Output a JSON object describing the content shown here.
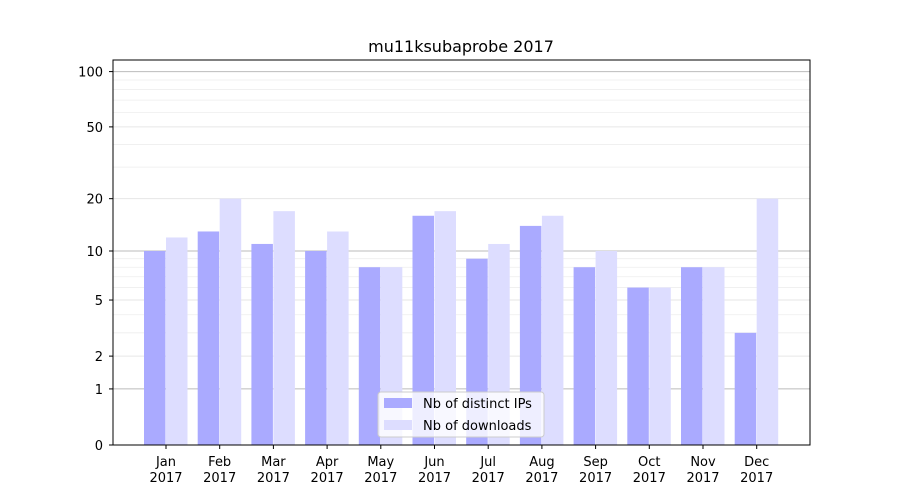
{
  "chart_data": {
    "type": "bar",
    "title": "mu11ksubaprobe 2017",
    "xlabel": "",
    "ylabel": "",
    "yscale": "symlog",
    "ylim": [
      0,
      120
    ],
    "yticks": [
      0,
      1,
      2,
      5,
      10,
      20,
      50,
      100
    ],
    "ytick_labels": [
      "0",
      "1",
      "2",
      "5",
      "10",
      "20",
      "50",
      "100"
    ],
    "grid": true,
    "legend_position": "bottom-center",
    "categories": [
      "Jan\n2017",
      "Feb\n2017",
      "Mar\n2017",
      "Apr\n2017",
      "May\n2017",
      "Jun\n2017",
      "Jul\n2017",
      "Aug\n2017",
      "Sep\n2017",
      "Oct\n2017",
      "Nov\n2017",
      "Dec\n2017"
    ],
    "series": [
      {
        "name": "Nb of distinct IPs",
        "color": "#aaaaff",
        "values": [
          10,
          13,
          11,
          10,
          8,
          16,
          9,
          14,
          8,
          6,
          8,
          3
        ]
      },
      {
        "name": "Nb of downloads",
        "color": "#ddddff",
        "values": [
          12,
          20,
          17,
          13,
          8,
          17,
          11,
          16,
          10,
          6,
          8,
          20
        ]
      }
    ]
  }
}
